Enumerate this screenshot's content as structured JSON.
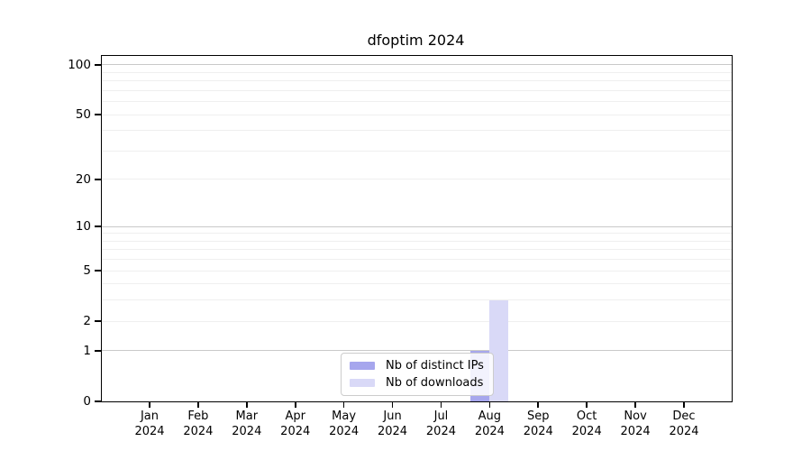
{
  "figure": {
    "background": "#ffffff"
  },
  "chart_data": {
    "type": "bar",
    "title": "dfoptim 2024",
    "categories": [
      "Jan 2024",
      "Feb 2024",
      "Mar 2024",
      "Apr 2024",
      "May 2024",
      "Jun 2024",
      "Jul 2024",
      "Aug 2024",
      "Sep 2024",
      "Oct 2024",
      "Nov 2024",
      "Dec 2024"
    ],
    "x_tick_labels": [
      [
        "Jan",
        "2024"
      ],
      [
        "Feb",
        "2024"
      ],
      [
        "Mar",
        "2024"
      ],
      [
        "Apr",
        "2024"
      ],
      [
        "May",
        "2024"
      ],
      [
        "Jun",
        "2024"
      ],
      [
        "Jul",
        "2024"
      ],
      [
        "Aug",
        "2024"
      ],
      [
        "Sep",
        "2024"
      ],
      [
        "Oct",
        "2024"
      ],
      [
        "Nov",
        "2024"
      ],
      [
        "Dec",
        "2024"
      ]
    ],
    "series": [
      {
        "name": "Nb of distinct IPs",
        "color": "#a6a6ed",
        "values": [
          0,
          0,
          0,
          0,
          0,
          0,
          0,
          1,
          0,
          0,
          0,
          0
        ]
      },
      {
        "name": "Nb of downloads",
        "color": "#d9d9f7",
        "values": [
          0,
          0,
          0,
          0,
          0,
          0,
          0,
          3,
          0,
          0,
          0,
          0
        ]
      }
    ],
    "y_axis": {
      "scale": "log1p",
      "ticks": [
        0,
        1,
        2,
        5,
        10,
        20,
        50,
        100
      ],
      "ylim": [
        0,
        113
      ],
      "major_gridlines": [
        1,
        10,
        100
      ],
      "minor_gridlines": [
        2,
        3,
        4,
        5,
        6,
        7,
        8,
        9,
        20,
        30,
        40,
        50,
        60,
        70,
        80,
        90
      ]
    },
    "legend": {
      "position": "lower center",
      "entries": [
        "Nb of distinct IPs",
        "Nb of downloads"
      ]
    },
    "colors": {
      "spine": "#000000",
      "major_grid": "#c9c9c9",
      "minor_grid": "#efefef",
      "legend_border": "#cccccc",
      "text": "#000000"
    }
  }
}
